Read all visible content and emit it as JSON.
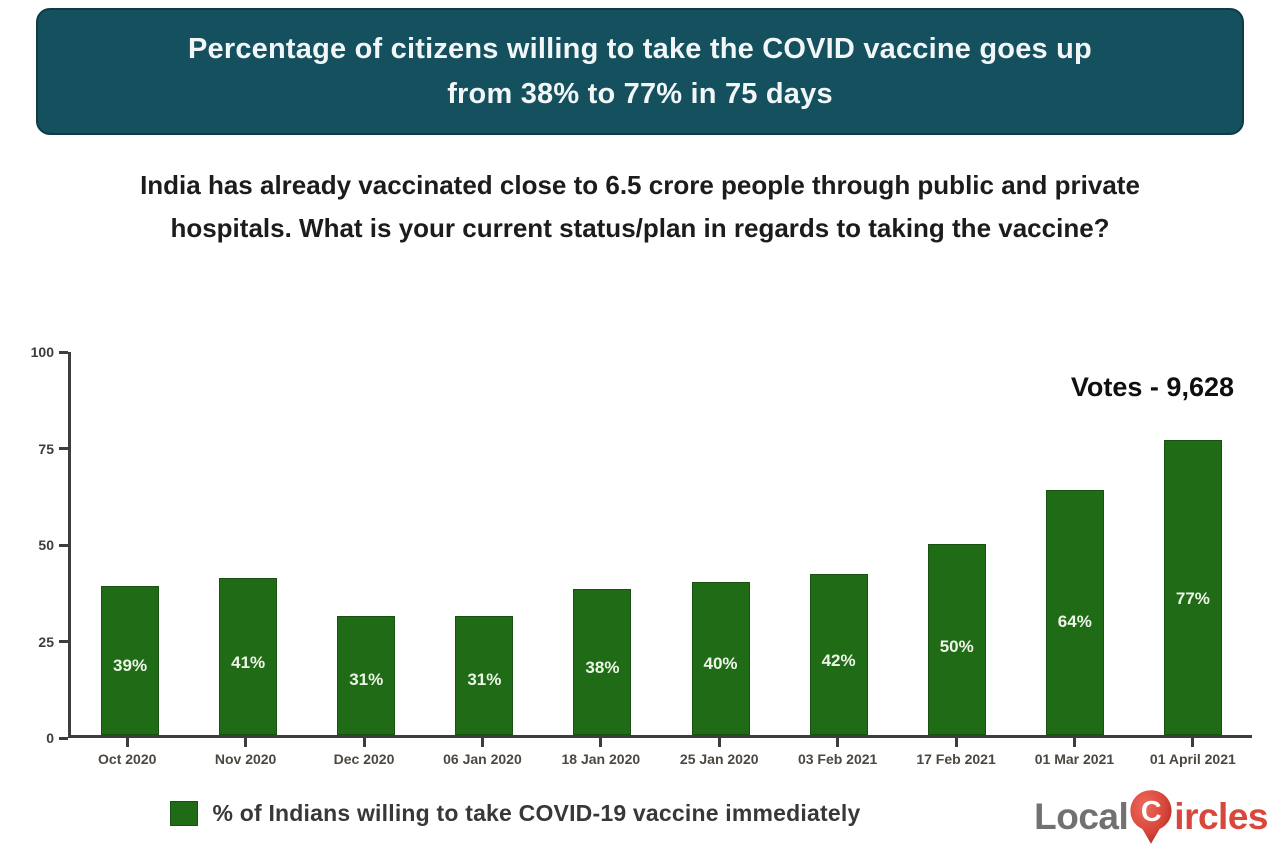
{
  "banner": {
    "line1": "Percentage of citizens willing to take the COVID vaccine goes up",
    "line2": "from 38% to 77% in 75 days",
    "bg_color": "#15505f",
    "text_color": "#f2f6f7"
  },
  "question": "India has already vaccinated close to 6.5 crore people through public and private hospitals. What is your current status/plan in regards to taking the vaccine?",
  "chart_data": {
    "type": "bar",
    "title": "Percentage of citizens willing to take the COVID vaccine goes up from 38% to 77% in 75 days",
    "categories": [
      "Oct 2020",
      "Nov 2020",
      "Dec 2020",
      "06 Jan 2020",
      "18 Jan 2020",
      "25 Jan 2020",
      "03 Feb 2021",
      "17 Feb 2021",
      "01 Mar 2021",
      "01 April 2021"
    ],
    "values": [
      39,
      41,
      31,
      31,
      38,
      40,
      42,
      50,
      64,
      77
    ],
    "value_labels": [
      "39%",
      "41%",
      "31%",
      "31%",
      "38%",
      "40%",
      "42%",
      "50%",
      "64%",
      "77%"
    ],
    "xlabel": "",
    "ylabel": "",
    "ylim": [
      0,
      100
    ],
    "yticks": [
      0,
      25,
      50,
      75,
      100
    ],
    "grid": false,
    "bar_color": "#1f6b16",
    "bar_label_color": "#eef5e8",
    "annotation": "Votes - 9,628",
    "legend": [
      "% of Indians willing to take COVID-19 vaccine immediately"
    ],
    "legend_position": "bottom"
  },
  "legend": {
    "label": "% of Indians willing to take COVID-19 vaccine immediately",
    "swatch_color": "#1f6b16"
  },
  "logo": {
    "text_gray": "Local",
    "pin_letter": "C",
    "text_red": "ircles",
    "gray_color": "#717171",
    "red_color": "#d8473c"
  }
}
